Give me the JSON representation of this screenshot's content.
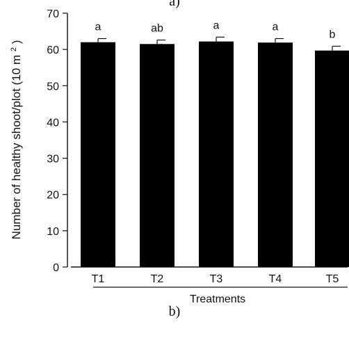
{
  "captions": {
    "top": "a)",
    "bottom": "b)"
  },
  "chart_data": {
    "type": "bar",
    "categories": [
      "T1",
      "T2",
      "T3",
      "T4",
      "T5"
    ],
    "values": [
      62.0,
      61.5,
      62.2,
      61.9,
      59.7
    ],
    "errors": [
      1.0,
      1.1,
      1.2,
      1.1,
      1.2
    ],
    "significance_letters": [
      "a",
      "ab",
      "a",
      "a",
      "b"
    ],
    "title": "",
    "xlabel": "Treatments",
    "ylabel_prefix": "Number of healthy shoot/plot (10 m",
    "ylabel_superscript": "2",
    "ylabel_suffix": ")",
    "ylim": [
      0,
      70
    ],
    "yticks": [
      0,
      10,
      20,
      30,
      40,
      50,
      60,
      70
    ],
    "grid": false,
    "legend": "none",
    "colors": {
      "bar_fill": "#000000",
      "axis": "#111111",
      "text": "#111111"
    }
  }
}
